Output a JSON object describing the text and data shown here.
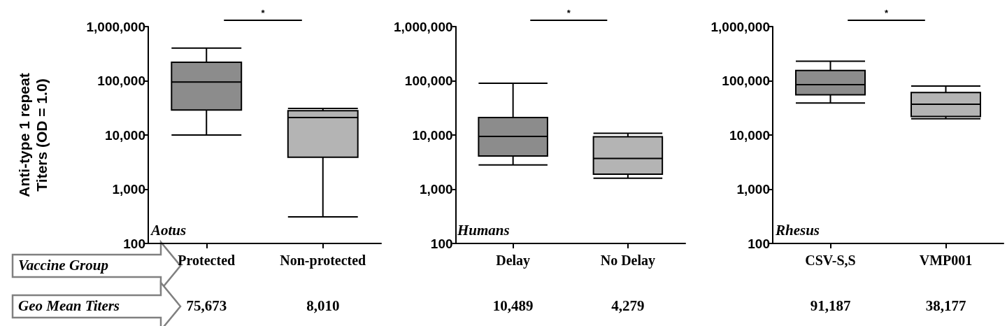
{
  "chart_data": [
    {
      "type": "box",
      "categories": [
        "Protected",
        "Non-protected"
      ],
      "ylabel": "Anti-type 1 repeat Titers (OD = 1.0)",
      "log": true,
      "boxes": [
        {
          "low": 10000,
          "q1": 29000,
          "median": 95000,
          "q3": 220000,
          "high": 400000
        },
        {
          "low": 310,
          "q1": 3900,
          "median": 21000,
          "q3": 28000,
          "high": 31000
        }
      ],
      "colors": [
        "#8c8c8c",
        "#b4b4b4"
      ],
      "ylim": [
        100,
        1000000
      ],
      "yticks": [
        {
          "value": 100,
          "label": "100"
        },
        {
          "value": 1000,
          "label": "1,000"
        },
        {
          "value": 10000,
          "label": "10,000"
        },
        {
          "value": 100000,
          "label": "100,000"
        },
        {
          "value": 1000000,
          "label": "1,000,000"
        }
      ],
      "annotations": [
        "Aotus",
        "*",
        "Vaccine Group",
        "Geo Mean Titers",
        "75,673",
        "8,010"
      ]
    },
    {
      "type": "box",
      "categories": [
        "Delay",
        "No Delay"
      ],
      "log": true,
      "boxes": [
        {
          "low": 2800,
          "q1": 4100,
          "median": 9400,
          "q3": 21000,
          "high": 90000
        },
        {
          "low": 1600,
          "q1": 1900,
          "median": 3700,
          "q3": 9300,
          "high": 10800
        }
      ],
      "colors": [
        "#8c8c8c",
        "#b4b4b4"
      ],
      "ylim": [
        100,
        1000000
      ],
      "yticks": [
        {
          "value": 100,
          "label": "100"
        },
        {
          "value": 1000,
          "label": "1,000"
        },
        {
          "value": 10000,
          "label": "10,000"
        },
        {
          "value": 100000,
          "label": "100,000"
        },
        {
          "value": 1000000,
          "label": "1,000,000"
        }
      ],
      "annotations": [
        "Humans",
        "*",
        "10,489",
        "4,279"
      ]
    },
    {
      "type": "box",
      "categories": [
        "CSV-S,S",
        "VMP001"
      ],
      "log": true,
      "boxes": [
        {
          "low": 39000,
          "q1": 55000,
          "median": 85000,
          "q3": 155000,
          "high": 230000
        },
        {
          "low": 20000,
          "q1": 22000,
          "median": 37000,
          "q3": 61000,
          "high": 80000
        }
      ],
      "colors": [
        "#8c8c8c",
        "#b4b4b4"
      ],
      "ylim": [
        100,
        1000000
      ],
      "yticks": [
        {
          "value": 100,
          "label": "100"
        },
        {
          "value": 1000,
          "label": "1,000"
        },
        {
          "value": 10000,
          "label": "10,000"
        },
        {
          "value": 100000,
          "label": "100,000"
        },
        {
          "value": 1000000,
          "label": "1,000,000"
        }
      ],
      "annotations": [
        "Rhesus",
        "*",
        "91,187",
        "38,177"
      ]
    }
  ]
}
